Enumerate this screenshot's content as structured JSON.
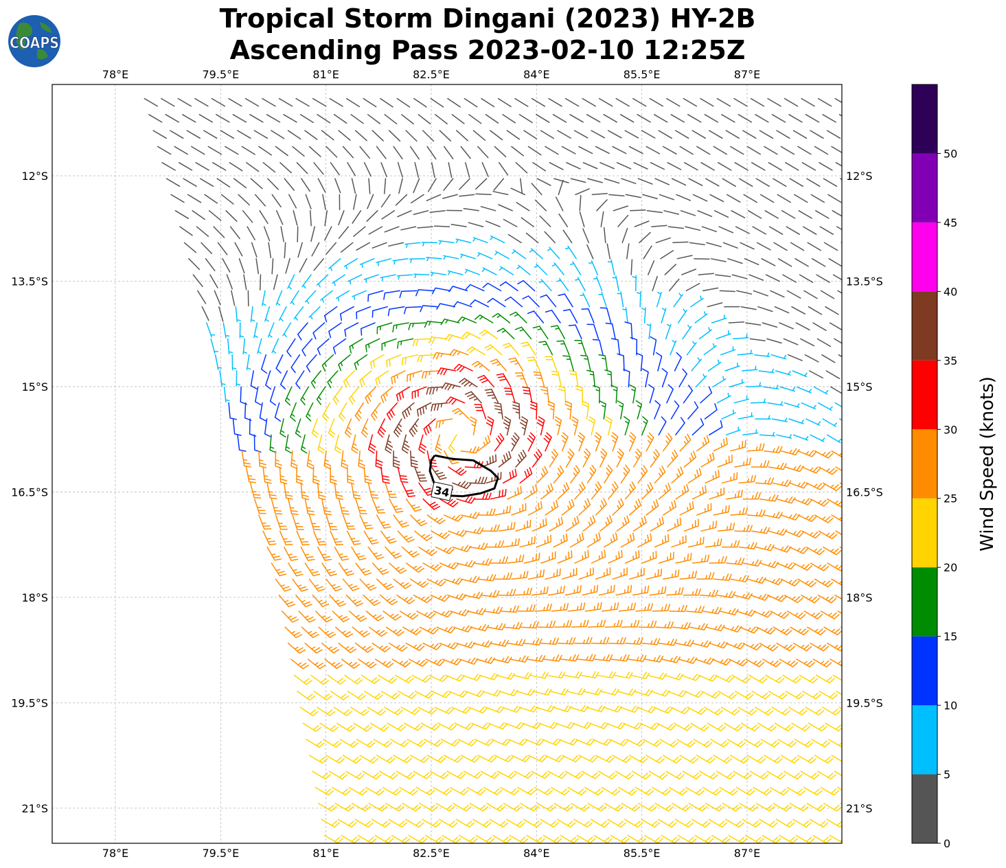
{
  "title": {
    "line1": "Tropical Storm Dingani (2023) HY-2B",
    "line2": "Ascending Pass 2023-02-10 12:25Z"
  },
  "logo": {
    "text": "COAPS",
    "icon": "globe-logo-icon"
  },
  "map": {
    "lon_range": [
      77.1,
      88.35
    ],
    "lat_range": [
      -21.5,
      -10.7
    ],
    "lon_ticks": [
      {
        "value": 78,
        "label": "78°E"
      },
      {
        "value": 79.5,
        "label": "79.5°E"
      },
      {
        "value": 81,
        "label": "81°E"
      },
      {
        "value": 82.5,
        "label": "82.5°E"
      },
      {
        "value": 84,
        "label": "84°E"
      },
      {
        "value": 85.5,
        "label": "85.5°E"
      },
      {
        "value": 87,
        "label": "87°E"
      }
    ],
    "lat_ticks": [
      {
        "value": -12,
        "label": "12°S"
      },
      {
        "value": -13.5,
        "label": "13.5°S"
      },
      {
        "value": -15,
        "label": "15°S"
      },
      {
        "value": -16.5,
        "label": "16.5°S"
      },
      {
        "value": -18,
        "label": "18°S"
      },
      {
        "value": -19.5,
        "label": "19.5°S"
      },
      {
        "value": -21,
        "label": "21°S"
      }
    ],
    "grid": true,
    "storm_center": {
      "lon": 82.9,
      "lat": -15.7
    },
    "swath_left_edge": [
      [
        78.4,
        -10.85
      ],
      [
        79.8,
        -15.9
      ],
      [
        80.3,
        -17.8
      ],
      [
        81.0,
        -21.5
      ]
    ],
    "contour": {
      "label": "34",
      "label_point": {
        "lon": 82.65,
        "lat": -16.5
      },
      "points": [
        [
          82.55,
          -15.98
        ],
        [
          82.8,
          -16.03
        ],
        [
          83.1,
          -16.05
        ],
        [
          83.35,
          -16.2
        ],
        [
          83.45,
          -16.3
        ],
        [
          83.4,
          -16.45
        ],
        [
          83.2,
          -16.52
        ],
        [
          82.95,
          -16.56
        ],
        [
          82.7,
          -16.55
        ],
        [
          82.55,
          -16.4
        ],
        [
          82.48,
          -16.2
        ],
        [
          82.5,
          -16.05
        ],
        [
          82.55,
          -15.98
        ]
      ]
    }
  },
  "colorbar": {
    "label": "Wind Speed (knots)",
    "tick_labels": [
      "0",
      "5",
      "10",
      "15",
      "20",
      "25",
      "30",
      "35",
      "40",
      "45",
      "50"
    ],
    "bins": [
      {
        "min": 0,
        "max": 5,
        "color": "#555555"
      },
      {
        "min": 5,
        "max": 10,
        "color": "#00bfff"
      },
      {
        "min": 10,
        "max": 15,
        "color": "#0033ff"
      },
      {
        "min": 15,
        "max": 20,
        "color": "#008c00"
      },
      {
        "min": 20,
        "max": 25,
        "color": "#ffd400"
      },
      {
        "min": 25,
        "max": 30,
        "color": "#ff8c00"
      },
      {
        "min": 30,
        "max": 35,
        "color": "#ff0000"
      },
      {
        "min": 35,
        "max": 40,
        "color": "#7f3a22"
      },
      {
        "min": 40,
        "max": 45,
        "color": "#ff00ee"
      },
      {
        "min": 45,
        "max": 50,
        "color": "#8200b4"
      },
      {
        "min": 50,
        "max": 55,
        "color": "#2e0057"
      }
    ]
  },
  "chart_data": {
    "type": "wind-barb",
    "title": "Tropical Storm Dingani (2023) HY-2B Ascending Pass 2023-02-10 12:25Z",
    "units": "knots",
    "x_axis": "longitude",
    "y_axis": "latitude",
    "xlim": [
      77.1,
      88.35
    ],
    "ylim": [
      -21.5,
      -10.7
    ],
    "vortex_center": {
      "lon": 82.9,
      "lat": -15.7
    },
    "max_observed_wind_kt": 38,
    "calm_region_center": {
      "lon": 85.8,
      "lat": -12.8
    }
  }
}
